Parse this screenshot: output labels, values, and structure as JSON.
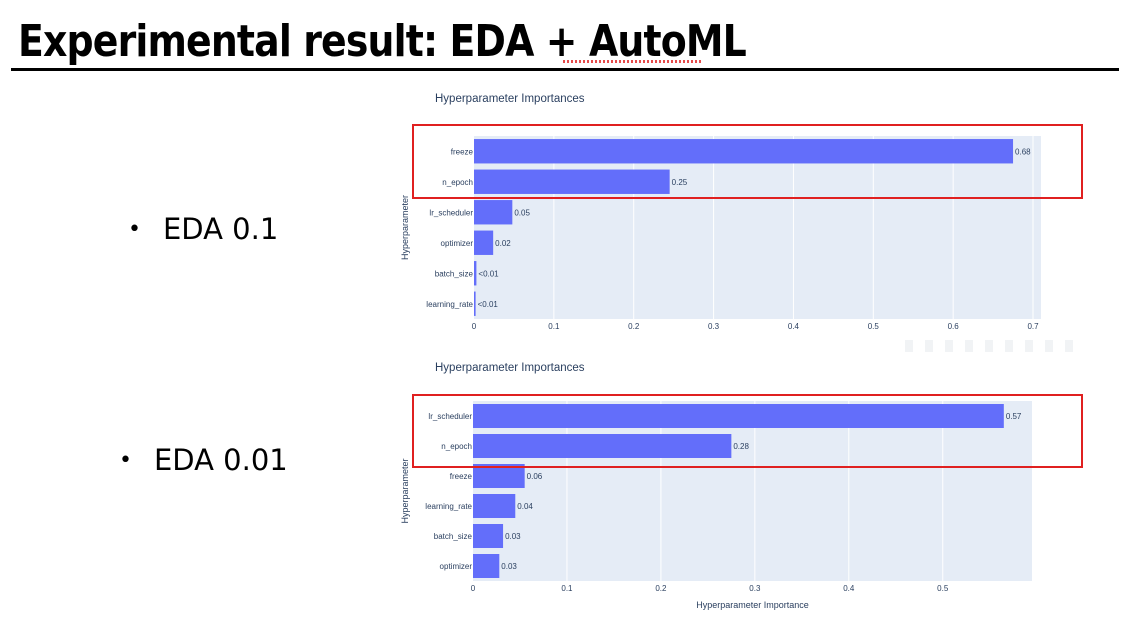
{
  "slide": {
    "title": "Experimental result: EDA + AutoML",
    "bullets": [
      "EDA 0.1",
      "EDA 0.01"
    ],
    "bullet_glyph": "•"
  },
  "chart_data": [
    {
      "type": "bar",
      "orientation": "horizontal",
      "title": "Hyperparameter Importances",
      "xlabel": "",
      "ylabel": "Hyperparameter",
      "categories": [
        "freeze",
        "n_epoch",
        "lr_scheduler",
        "optimizer",
        "batch_size",
        "learning_rate"
      ],
      "values": [
        0.675,
        0.245,
        0.048,
        0.024,
        0.003,
        0.002
      ],
      "value_labels": [
        "0.68",
        "0.25",
        "0.05",
        "0.02",
        "<0.01",
        "<0.01"
      ],
      "xlim": [
        0,
        0.71
      ],
      "xticks": [
        0,
        0.1,
        0.2,
        0.3,
        0.4,
        0.5,
        0.6,
        0.7
      ],
      "xtick_labels": [
        "0",
        "0.1",
        "0.2",
        "0.3",
        "0.4",
        "0.5",
        "0.6",
        "0.7"
      ],
      "grid": true,
      "bar_color": "#636efa",
      "plot_bg": "#e5ecf6",
      "highlighted_categories": [
        "freeze",
        "n_epoch"
      ]
    },
    {
      "type": "bar",
      "orientation": "horizontal",
      "title": "Hyperparameter Importances",
      "xlabel": "Hyperparameter Importance",
      "ylabel": "Hyperparameter",
      "categories": [
        "lr_scheduler",
        "n_epoch",
        "freeze",
        "learning_rate",
        "batch_size",
        "optimizer"
      ],
      "values": [
        0.565,
        0.275,
        0.055,
        0.045,
        0.032,
        0.028
      ],
      "value_labels": [
        "0.57",
        "0.28",
        "0.06",
        "0.04",
        "0.03",
        "0.03"
      ],
      "xlim": [
        0,
        0.595
      ],
      "xticks": [
        0,
        0.1,
        0.2,
        0.3,
        0.4,
        0.5
      ],
      "xtick_labels": [
        "0",
        "0.1",
        "0.2",
        "0.3",
        "0.4",
        "0.5"
      ],
      "grid": true,
      "bar_color": "#636efa",
      "plot_bg": "#e5ecf6",
      "highlighted_categories": [
        "lr_scheduler",
        "n_epoch"
      ]
    }
  ],
  "colors": {
    "highlight": "#e02020",
    "text": "#2a3f5f",
    "grid": "#ffffff"
  }
}
